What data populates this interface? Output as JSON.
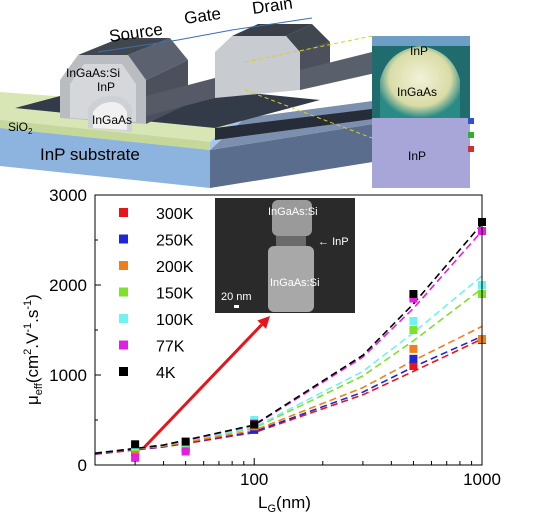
{
  "diagram": {
    "labels": {
      "source": "Source",
      "gate": "Gate",
      "drain": "Drain",
      "channel_material": "InGaAs:Si",
      "barrier": "InP",
      "core": "InGaAs",
      "oxide": "SiO",
      "oxide_sub": "2",
      "substrate": "InP substrate"
    },
    "cross_section": {
      "top": "InP",
      "middle": "InGaAs",
      "bottom": "InP"
    }
  },
  "inset": {
    "label_top": "InGaAs:Si",
    "label_mid": "InP",
    "label_bottom": "InGaAs:Si",
    "scale": "20 nm"
  },
  "chart_data": {
    "type": "scatter",
    "xscale": "log",
    "xlim": [
      20,
      1000
    ],
    "ylim": [
      0,
      3000
    ],
    "xticks": [
      "100",
      "1000"
    ],
    "yticks": [
      "0",
      "1000",
      "2000",
      "3000"
    ],
    "xlabel": "L",
    "xlabel_sub": "G",
    "xlabel_unit": "(nm)",
    "ylabel": "μ",
    "ylabel_sub": "eff",
    "ylabel_unit_a": "(cm",
    "ylabel_sup1": "2",
    "ylabel_unit_b": ".V",
    "ylabel_sup2": "-1",
    "ylabel_unit_c": ".s",
    "ylabel_sup3": "-1",
    "ylabel_unit_d": ")",
    "series": [
      {
        "name": "300K",
        "color": "#e8141b",
        "points": [
          [
            30,
            140
          ],
          [
            50,
            180
          ],
          [
            100,
            410
          ],
          [
            500,
            1100
          ],
          [
            1000,
            1400
          ]
        ],
        "fit": [
          [
            20,
            120
          ],
          [
            40,
            200
          ],
          [
            100,
            360
          ],
          [
            300,
            780
          ],
          [
            500,
            1040
          ],
          [
            1000,
            1400
          ]
        ]
      },
      {
        "name": "250K",
        "color": "#1d28d4",
        "points": [
          [
            30,
            150
          ],
          [
            50,
            190
          ],
          [
            100,
            390
          ],
          [
            500,
            1180
          ],
          [
            1000,
            1390
          ]
        ],
        "fit": [
          [
            20,
            125
          ],
          [
            40,
            205
          ],
          [
            100,
            370
          ],
          [
            300,
            810
          ],
          [
            500,
            1090
          ],
          [
            1000,
            1430
          ]
        ]
      },
      {
        "name": "200K",
        "color": "#ef7f1a",
        "points": [
          [
            30,
            170
          ],
          [
            50,
            230
          ],
          [
            100,
            430
          ],
          [
            500,
            1290
          ],
          [
            1000,
            1400
          ]
        ],
        "fit": [
          [
            20,
            130
          ],
          [
            40,
            210
          ],
          [
            100,
            385
          ],
          [
            300,
            860
          ],
          [
            500,
            1160
          ],
          [
            1000,
            1540
          ]
        ]
      },
      {
        "name": "150K",
        "color": "#7ee22a",
        "points": [
          [
            30,
            200
          ],
          [
            50,
            240
          ],
          [
            100,
            470
          ],
          [
            500,
            1500
          ],
          [
            1000,
            1900
          ]
        ],
        "fit": [
          [
            20,
            130
          ],
          [
            40,
            215
          ],
          [
            100,
            410
          ],
          [
            300,
            990
          ],
          [
            500,
            1380
          ],
          [
            1000,
            1960
          ]
        ]
      },
      {
        "name": "100K",
        "color": "#6ff2f2",
        "points": [
          [
            30,
            210
          ],
          [
            50,
            250
          ],
          [
            100,
            500
          ],
          [
            500,
            1600
          ],
          [
            1000,
            2000
          ]
        ],
        "fit": [
          [
            20,
            135
          ],
          [
            40,
            220
          ],
          [
            100,
            420
          ],
          [
            300,
            1040
          ],
          [
            500,
            1470
          ],
          [
            1000,
            2100
          ]
        ]
      },
      {
        "name": "77K",
        "color": "#e51fe0",
        "points": [
          [
            30,
            80
          ],
          [
            50,
            150
          ],
          [
            100,
            460
          ],
          [
            500,
            1850
          ],
          [
            1000,
            2600
          ]
        ],
        "fit": [
          [
            20,
            130
          ],
          [
            40,
            220
          ],
          [
            100,
            440
          ],
          [
            300,
            1200
          ],
          [
            500,
            1740
          ],
          [
            1000,
            2600
          ]
        ]
      },
      {
        "name": "4K",
        "color": "#000000",
        "points": [
          [
            30,
            230
          ],
          [
            50,
            260
          ],
          [
            100,
            450
          ],
          [
            500,
            1900
          ],
          [
            1000,
            2700
          ]
        ],
        "fit": [
          [
            20,
            130
          ],
          [
            40,
            222
          ],
          [
            100,
            445
          ],
          [
            300,
            1220
          ],
          [
            500,
            1790
          ],
          [
            1000,
            2680
          ]
        ]
      }
    ],
    "annotation_arrow": {
      "from_x": 33,
      "from_y": 200
    }
  }
}
